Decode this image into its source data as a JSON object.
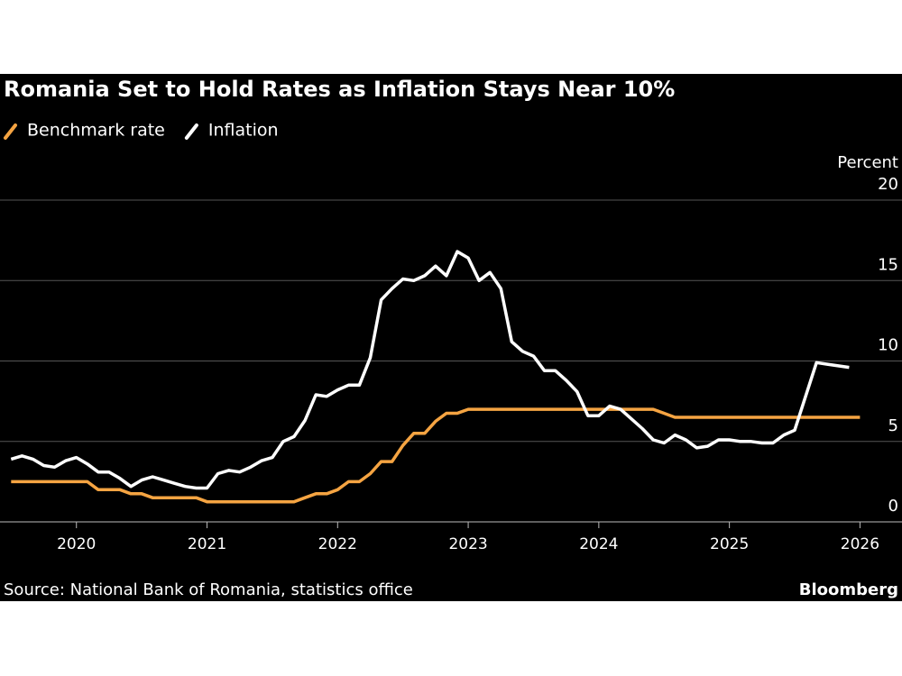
{
  "chart_data": {
    "type": "line",
    "title": "Romania Set to Hold Rates as Inflation Stays Near 10%",
    "y_label": "Percent",
    "source": "Source: National Bank of Romania, statistics office",
    "brand": "Bloomberg",
    "x": [
      2019.5,
      2019.5833,
      2019.6667,
      2019.75,
      2019.8333,
      2019.9167,
      2020,
      2020.0833,
      2020.1667,
      2020.25,
      2020.3333,
      2020.4167,
      2020.5,
      2020.5833,
      2020.6667,
      2020.75,
      2020.8333,
      2020.9167,
      2021,
      2021.0833,
      2021.1667,
      2021.25,
      2021.3333,
      2021.4167,
      2021.5,
      2021.5833,
      2021.6667,
      2021.75,
      2021.8333,
      2021.9167,
      2022,
      2022.0833,
      2022.1667,
      2022.25,
      2022.3333,
      2022.4167,
      2022.5,
      2022.5833,
      2022.6667,
      2022.75,
      2022.8333,
      2022.9167,
      2023,
      2023.0833,
      2023.1667,
      2023.25,
      2023.3333,
      2023.4167,
      2023.5,
      2023.5833,
      2023.6667,
      2023.75,
      2023.8333,
      2023.9167,
      2024,
      2024.0833,
      2024.1667,
      2024.25,
      2024.3333,
      2024.4167,
      2024.5,
      2024.5833,
      2024.6667,
      2024.75,
      2024.8333,
      2024.9167,
      2025,
      2025.0833,
      2025.1667,
      2025.25,
      2025.3333,
      2025.4167,
      2025.5,
      2025.5833,
      2025.6667,
      2025.75,
      2025.8333,
      2025.9167,
      2026
    ],
    "series": [
      {
        "name": "Benchmark rate",
        "color": "#f5a442",
        "values": [
          2.5,
          2.5,
          2.5,
          2.5,
          2.5,
          2.5,
          2.5,
          2.5,
          2.0,
          2.0,
          2.0,
          1.75,
          1.75,
          1.5,
          1.5,
          1.5,
          1.5,
          1.5,
          1.25,
          1.25,
          1.25,
          1.25,
          1.25,
          1.25,
          1.25,
          1.25,
          1.25,
          1.5,
          1.75,
          1.75,
          2.0,
          2.5,
          2.5,
          3.0,
          3.75,
          3.75,
          4.75,
          5.5,
          5.5,
          6.25,
          6.75,
          6.75,
          7.0,
          7.0,
          7.0,
          7.0,
          7.0,
          7.0,
          7.0,
          7.0,
          7.0,
          7.0,
          7.0,
          7.0,
          7.0,
          7.0,
          7.0,
          7.0,
          7.0,
          7.0,
          6.75,
          6.5,
          6.5,
          6.5,
          6.5,
          6.5,
          6.5,
          6.5,
          6.5,
          6.5,
          6.5,
          6.5,
          6.5,
          6.5,
          6.5,
          6.5,
          6.5,
          6.5,
          6.5
        ]
      },
      {
        "name": "Inflation",
        "color": "#ffffff",
        "values": [
          3.9,
          4.1,
          3.9,
          3.5,
          3.4,
          3.8,
          4.0,
          3.6,
          3.1,
          3.1,
          2.7,
          2.2,
          2.6,
          2.8,
          2.6,
          2.4,
          2.2,
          2.1,
          2.1,
          3.0,
          3.2,
          3.1,
          3.4,
          3.8,
          4.0,
          5.0,
          5.3,
          6.3,
          7.9,
          7.8,
          8.2,
          8.5,
          8.5,
          10.2,
          13.8,
          14.5,
          15.1,
          15.0,
          15.3,
          15.9,
          15.3,
          16.8,
          16.4,
          15.0,
          15.5,
          14.5,
          11.2,
          10.6,
          10.3,
          9.4,
          9.4,
          8.8,
          8.1,
          6.6,
          6.6,
          7.2,
          7.0,
          6.4,
          5.8,
          5.1,
          4.9,
          5.4,
          5.1,
          4.6,
          4.7,
          5.1,
          5.1,
          5.0,
          5.0,
          4.9,
          4.9,
          5.4,
          5.7,
          7.8,
          9.9,
          9.8,
          9.7,
          9.6,
          null
        ]
      }
    ],
    "xlim": [
      2019.47,
      2026.08
    ],
    "xticks": [
      2020,
      2021,
      2022,
      2023,
      2024,
      2025,
      2026
    ],
    "ylim": [
      0,
      20
    ],
    "yticks": [
      0,
      5,
      10,
      15,
      20
    ],
    "grid": true
  }
}
